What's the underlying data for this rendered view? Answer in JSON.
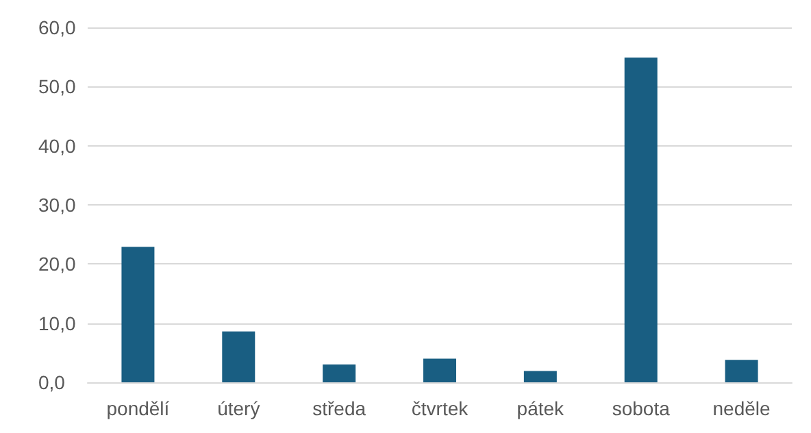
{
  "chart_data": {
    "type": "bar",
    "categories": [
      "pondělí",
      "úterý",
      "středa",
      "čtvrtek",
      "pátek",
      "sobota",
      "neděle"
    ],
    "values": [
      22.9,
      8.6,
      3.0,
      4.0,
      1.9,
      54.9,
      3.8
    ],
    "color": "#195e82",
    "ylim": [
      0,
      60
    ],
    "yticks": [
      {
        "value": 0,
        "label": "0,0"
      },
      {
        "value": 10,
        "label": "10,0"
      },
      {
        "value": 20,
        "label": "20,0"
      },
      {
        "value": 30,
        "label": "30,0"
      },
      {
        "value": 40,
        "label": "40,0"
      },
      {
        "value": 50,
        "label": "50,0"
      },
      {
        "value": 60,
        "label": "60,0"
      }
    ],
    "grid": "y"
  }
}
